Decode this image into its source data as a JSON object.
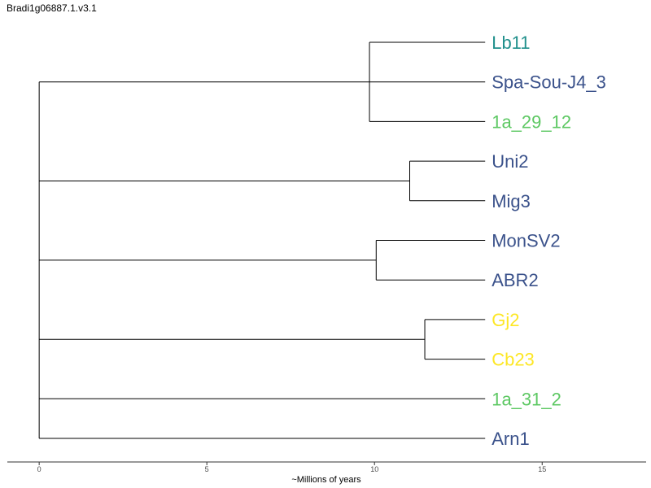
{
  "title": "Bradi1g06887.1.v3.1",
  "axis": {
    "label": "~Millions of years",
    "ticks": [
      0,
      5,
      10,
      15
    ],
    "range": [
      -0.95,
      18.1
    ]
  },
  "colors": {
    "teal": "#21908c",
    "blue": "#3b528b",
    "green": "#5dc863",
    "yellow": "#fde725",
    "branch": "#000000"
  },
  "tree": {
    "tip_x": 13.3,
    "root_x": 0,
    "leaves": [
      {
        "label": "Lb11",
        "color": "#21908c"
      },
      {
        "label": "Spa-Sou-J4_3",
        "color": "#3b528b"
      },
      {
        "label": "1a_29_12",
        "color": "#5dc863"
      },
      {
        "label": "Uni2",
        "color": "#3b528b"
      },
      {
        "label": "Mig3",
        "color": "#3b528b"
      },
      {
        "label": "MonSV2",
        "color": "#3b528b"
      },
      {
        "label": "ABR2",
        "color": "#3b528b"
      },
      {
        "label": "Gj2",
        "color": "#fde725"
      },
      {
        "label": "Cb23",
        "color": "#fde725"
      },
      {
        "label": "1a_31_2",
        "color": "#5dc863"
      },
      {
        "label": "Arn1",
        "color": "#3b528b"
      }
    ],
    "clades": [
      {
        "node_x": 9.85,
        "leaf_indices": [
          0,
          1,
          2
        ]
      },
      {
        "node_x": 11.05,
        "leaf_indices": [
          3,
          4
        ]
      },
      {
        "node_x": 10.05,
        "leaf_indices": [
          5,
          6
        ]
      },
      {
        "node_x": 11.5,
        "leaf_indices": [
          7,
          8
        ]
      },
      {
        "node_x": null,
        "leaf_indices": [
          9
        ]
      },
      {
        "node_x": null,
        "leaf_indices": [
          10
        ]
      }
    ]
  }
}
